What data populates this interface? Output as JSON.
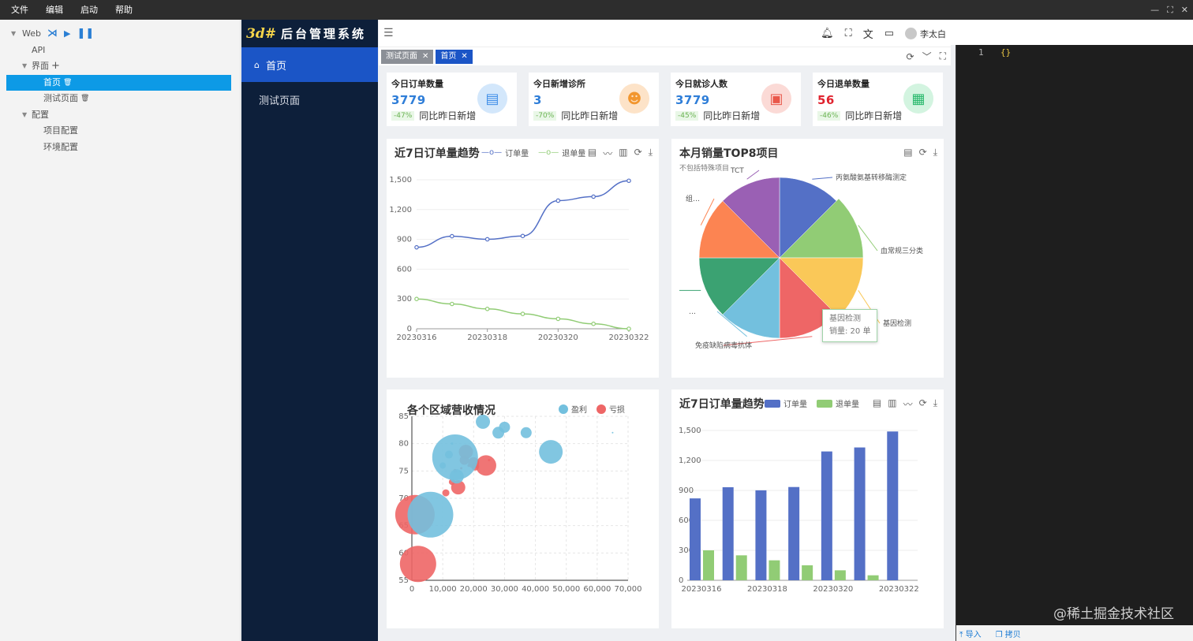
{
  "menubar": {
    "items": [
      "文件",
      "编辑",
      "启动",
      "帮助"
    ],
    "win_controls": [
      "—",
      "⛶",
      "✕"
    ]
  },
  "tree": {
    "rows": [
      {
        "label": "Web",
        "level": 0,
        "arrow": "▼",
        "tools": true
      },
      {
        "label": "API",
        "level": 1
      },
      {
        "label": "界面",
        "level": 1,
        "arrow": "▼",
        "plus": "+"
      },
      {
        "label": "首页",
        "level": 2,
        "selected": true,
        "trash": "🗑"
      },
      {
        "label": "测试页面",
        "level": 2,
        "trash": "🗑"
      },
      {
        "label": "配置",
        "level": 1,
        "arrow": "▼"
      },
      {
        "label": "项目配置",
        "level": 2
      },
      {
        "label": "环境配置",
        "level": 2
      }
    ]
  },
  "sidebar": {
    "logo_mark": "3d#",
    "logo_text": "后台管理系统",
    "items": [
      {
        "label": "首页",
        "icon": "home-icon",
        "active": true
      },
      {
        "label": "测试页面",
        "active": false
      }
    ]
  },
  "header": {
    "user": "李太白"
  },
  "tabs": [
    {
      "label": "测试页面",
      "close": "✕",
      "active": false
    },
    {
      "label": "首页",
      "close": "✕",
      "active": true
    }
  ],
  "stats": [
    {
      "title": "今日订单数量",
      "value": "3779",
      "value_color": "#2f7ed8",
      "pct": "-47%",
      "desc": "同比昨日新增",
      "icon": "document-icon",
      "icon_bg": "#d3e7fb",
      "icon_fg": "#3f8ee8"
    },
    {
      "title": "今日新增诊所",
      "value": "3",
      "value_color": "#2f7ed8",
      "pct": "-70%",
      "desc": "同比昨日新增",
      "icon": "doctor-icon",
      "icon_bg": "#fde3c8",
      "icon_fg": "#f2962e"
    },
    {
      "title": "今日就诊人数",
      "value": "3779",
      "value_color": "#2f7ed8",
      "pct": "-45%",
      "desc": "同比昨日新增",
      "icon": "refund-card-icon",
      "icon_bg": "#fbdad6",
      "icon_fg": "#e9574a"
    },
    {
      "title": "今日退单数量",
      "value": "56",
      "value_color": "#e0232f",
      "pct": "-46%",
      "desc": "同比昨日新增",
      "icon": "building-icon",
      "icon_bg": "#d3f4e0",
      "icon_fg": "#27b86b"
    }
  ],
  "line_card": {
    "title": "近7日订单量趋势",
    "legend": [
      "订单量",
      "退单量"
    ],
    "tools": [
      "▤",
      "〰",
      "▥",
      "⟳",
      "⤓"
    ]
  },
  "pie_card": {
    "title": "本月销量TOP8项目",
    "subtitle": "不包括特殊项目",
    "tools": [
      "▤",
      "⟳",
      "⤓"
    ],
    "tooltip_name": "基因检测",
    "tooltip_value": "销量:  20 单"
  },
  "bubble_card": {
    "title": "各个区域营收情况",
    "legend": [
      "盈利",
      "亏损"
    ]
  },
  "bar_card": {
    "title": "近7日订单量趋势",
    "legend": [
      "订单量",
      "退单量"
    ],
    "tools": [
      "▤",
      "▥",
      "〰",
      "⟳",
      "⤓"
    ]
  },
  "editor": {
    "line_no": "1",
    "code": "{}",
    "import_label": "导入",
    "copy_label": "拷贝"
  },
  "watermark": "@稀土掘金技术社区",
  "colors": {
    "blue": "#5470c6",
    "green": "#91cc75",
    "accent": "#1b55c6"
  },
  "chart_data": [
    {
      "type": "line",
      "title": "近7日订单量趋势",
      "x": [
        "20230316",
        "20230317",
        "20230318",
        "20230319",
        "20230320",
        "20230321",
        "20230322"
      ],
      "x_tick_labels": [
        "20230316",
        "20230318",
        "20230320",
        "20230322"
      ],
      "series": [
        {
          "name": "订单量",
          "values": [
            820,
            932,
            901,
            934,
            1290,
            1330,
            1490
          ]
        },
        {
          "name": "退单量",
          "values": [
            300,
            250,
            200,
            150,
            100,
            50,
            0
          ]
        }
      ],
      "ylim": [
        0,
        1500
      ],
      "yticks": [
        0,
        300,
        600,
        900,
        1200,
        1500
      ]
    },
    {
      "type": "pie",
      "title": "本月销量TOP8项目",
      "subtitle": "不包括特殊项目",
      "slices": [
        {
          "name": "丙氨酸氨基转移酶测定",
          "value": 20,
          "color": "#5470c6"
        },
        {
          "name": "血常规三分类",
          "value": 20,
          "color": "#91cc75"
        },
        {
          "name": "基因检测",
          "value": 20,
          "color": "#fac858"
        },
        {
          "name": "免疫缺陷病毒抗体",
          "value": 20,
          "color": "#ee6666"
        },
        {
          "name": "…",
          "value": 20,
          "color": "#73c0de"
        },
        {
          "name": "",
          "value": 20,
          "color": "#3ba272"
        },
        {
          "name": "组…",
          "value": 20,
          "color": "#fc8452"
        },
        {
          "name": "TCT",
          "value": 20,
          "color": "#9a60b4"
        }
      ]
    },
    {
      "type": "scatter",
      "title": "各个区域营收情况",
      "xticks": [
        0,
        10000,
        20000,
        30000,
        40000,
        50000,
        60000,
        70000
      ],
      "x_tick_labels": [
        "0",
        "10,000",
        "20,000",
        "30,000",
        "40,000",
        "50,000",
        "60,000",
        "70,000"
      ],
      "yticks": [
        55,
        60,
        65,
        70,
        75,
        80,
        85
      ],
      "y_tick_labels": [
        "55",
        "60",
        "65",
        "70",
        "75",
        "80",
        "85"
      ],
      "xlim": [
        0,
        70000
      ],
      "ylim": [
        55,
        85
      ],
      "series": [
        {
          "name": "盈利",
          "color": "#73c0de",
          "points": [
            [
              14000,
              77.5,
              58
            ],
            [
              6000,
              67,
              58
            ],
            [
              13000,
              80,
              3
            ],
            [
              10000,
              76,
              8
            ],
            [
              12000,
              78,
              10
            ],
            [
              28000,
              82,
              15
            ],
            [
              30000,
              83,
              14
            ],
            [
              37000,
              82,
              14
            ],
            [
              45000,
              78.5,
              30
            ],
            [
              23000,
              84,
              18
            ],
            [
              65000,
              82,
              2
            ],
            [
              14500,
              74,
              18
            ]
          ]
        },
        {
          "name": "亏损",
          "color": "#ee6666",
          "points": [
            [
              1000,
              67,
              50
            ],
            [
              2000,
              58,
              46
            ],
            [
              15000,
              72,
              18
            ],
            [
              11000,
              71,
              9
            ],
            [
              13000,
              73,
              8
            ],
            [
              17000,
              77,
              12
            ],
            [
              17500,
              78.5,
              18
            ],
            [
              20000,
              76.5,
              14
            ],
            [
              24000,
              76,
              26
            ],
            [
              14000,
              75,
              5
            ],
            [
              18500,
              76,
              4
            ],
            [
              16000,
              75.5,
              3
            ],
            [
              20500,
              75.8,
              10
            ],
            [
              25000,
              77,
              3
            ]
          ]
        }
      ]
    },
    {
      "type": "bar",
      "title": "近7日订单量趋势",
      "categories": [
        "20230316",
        "20230317",
        "20230318",
        "20230319",
        "20230320",
        "20230321",
        "20230322"
      ],
      "x_tick_labels": [
        "20230316",
        "20230318",
        "20230320",
        "20230322"
      ],
      "series": [
        {
          "name": "订单量",
          "values": [
            820,
            932,
            901,
            934,
            1290,
            1330,
            1490
          ]
        },
        {
          "name": "退单量",
          "values": [
            300,
            250,
            200,
            150,
            100,
            50,
            0
          ]
        }
      ],
      "ylim": [
        0,
        1500
      ],
      "yticks": [
        0,
        300,
        600,
        900,
        1200,
        1500
      ]
    }
  ]
}
